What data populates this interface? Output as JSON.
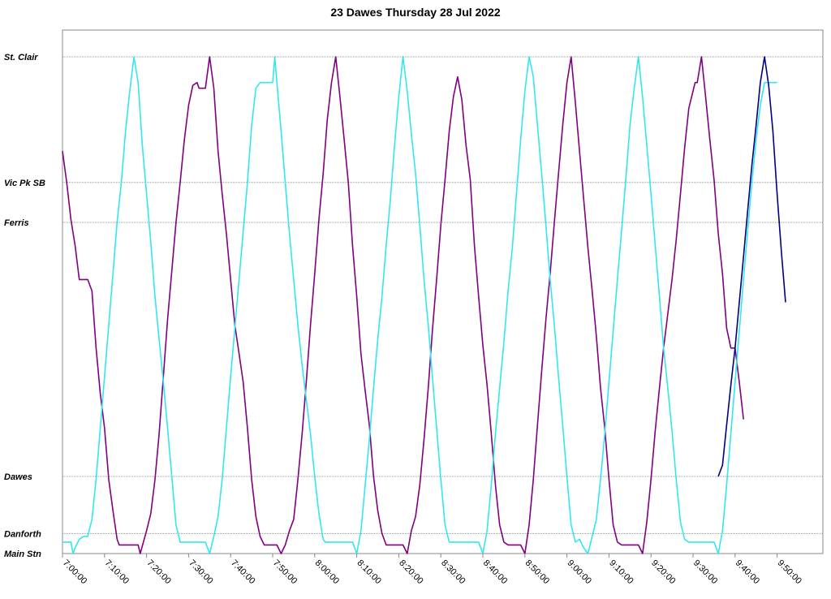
{
  "chart_data": {
    "type": "line",
    "title": "23 Dawes Thursday 28 Jul 2022",
    "xlabel": "",
    "ylabel": "",
    "grid": "horizontal dotted lines at each stop",
    "legend": "none",
    "x_range_minutes": [
      0,
      180
    ],
    "stops": [
      "Main Stn",
      "Danforth",
      "Dawes",
      "Ferris",
      "Vic Pk SB",
      "St. Clair"
    ],
    "stop_positions": {
      "Main Stn": 0,
      "Danforth": 7,
      "Dawes": 27,
      "Ferris": 116,
      "Vic Pk SB": 130,
      "St. Clair": 174
    },
    "y_range": [
      0,
      184
    ],
    "x_tick_labels": [
      "7:00:00",
      "7:10:00",
      "7:20:00",
      "7:30:00",
      "7:40:00",
      "7:50:00",
      "8:00:00",
      "8:10:00",
      "8:20:00",
      "8:30:00",
      "8:40:00",
      "8:50:00",
      "9:00:00",
      "9:10:00",
      "9:20:00",
      "9:30:00",
      "9:40:00",
      "9:50:00"
    ],
    "x_tick_minutes": [
      0,
      10,
      20,
      30,
      40,
      50,
      60,
      70,
      80,
      90,
      100,
      110,
      120,
      130,
      140,
      150,
      160,
      170
    ],
    "series": [
      {
        "color": "#800080",
        "points": [
          [
            0,
            141
          ],
          [
            1,
            130
          ],
          [
            2,
            117
          ],
          [
            3,
            108
          ],
          [
            4,
            96
          ],
          [
            6,
            96
          ],
          [
            7,
            92
          ],
          [
            8,
            72
          ],
          [
            9,
            56
          ],
          [
            10,
            44
          ],
          [
            11,
            26
          ],
          [
            12,
            15
          ],
          [
            13,
            5
          ],
          [
            13.5,
            3
          ],
          [
            18,
            3
          ],
          [
            18.5,
            0
          ],
          [
            20,
            8
          ],
          [
            21,
            14
          ],
          [
            22,
            26
          ],
          [
            23,
            42
          ],
          [
            24,
            62
          ],
          [
            25,
            82
          ],
          [
            26,
            99
          ],
          [
            27,
            116
          ],
          [
            28,
            130
          ],
          [
            29,
            145
          ],
          [
            30,
            157
          ],
          [
            31,
            164
          ],
          [
            32,
            165
          ],
          [
            32.5,
            163
          ],
          [
            33,
            163
          ],
          [
            34,
            163
          ],
          [
            35,
            174
          ],
          [
            36,
            163
          ],
          [
            37,
            141
          ],
          [
            38,
            126
          ],
          [
            39,
            112
          ],
          [
            40,
            96
          ],
          [
            41,
            80
          ],
          [
            42,
            70
          ],
          [
            43,
            60
          ],
          [
            44,
            44
          ],
          [
            45,
            26
          ],
          [
            46,
            13
          ],
          [
            47,
            6
          ],
          [
            48,
            3
          ],
          [
            51,
            3
          ],
          [
            52,
            0
          ],
          [
            53,
            3
          ],
          [
            54,
            8
          ],
          [
            55,
            12
          ],
          [
            56,
            26
          ],
          [
            57,
            42
          ],
          [
            58,
            60
          ],
          [
            59,
            80
          ],
          [
            60,
            98
          ],
          [
            61,
            117
          ],
          [
            62,
            133
          ],
          [
            63,
            152
          ],
          [
            64,
            165
          ],
          [
            65,
            174
          ],
          [
            66,
            160
          ],
          [
            67,
            145
          ],
          [
            68,
            130
          ],
          [
            69,
            108
          ],
          [
            70,
            90
          ],
          [
            71,
            70
          ],
          [
            72,
            57
          ],
          [
            73,
            45
          ],
          [
            74,
            27
          ],
          [
            75,
            15
          ],
          [
            76,
            7
          ],
          [
            77,
            3
          ],
          [
            81,
            3
          ],
          [
            82,
            0
          ],
          [
            83,
            8
          ],
          [
            84,
            13
          ],
          [
            85,
            24
          ],
          [
            86,
            40
          ],
          [
            87,
            58
          ],
          [
            88,
            78
          ],
          [
            89,
            96
          ],
          [
            90,
            115
          ],
          [
            91,
            131
          ],
          [
            92,
            148
          ],
          [
            93,
            160
          ],
          [
            94,
            167
          ],
          [
            95,
            159
          ],
          [
            96,
            143
          ],
          [
            97,
            131
          ],
          [
            98,
            108
          ],
          [
            99,
            90
          ],
          [
            100,
            73
          ],
          [
            101,
            59
          ],
          [
            102,
            42
          ],
          [
            103,
            24
          ],
          [
            104,
            10
          ],
          [
            105,
            4
          ],
          [
            106,
            3
          ],
          [
            109,
            3
          ],
          [
            110,
            0
          ],
          [
            111,
            10
          ],
          [
            112,
            26
          ],
          [
            113,
            45
          ],
          [
            114,
            64
          ],
          [
            115,
            82
          ],
          [
            116,
            98
          ],
          [
            117,
            116
          ],
          [
            118,
            133
          ],
          [
            119,
            150
          ],
          [
            120,
            165
          ],
          [
            121,
            174
          ],
          [
            122,
            158
          ],
          [
            123,
            141
          ],
          [
            124,
            124
          ],
          [
            125,
            107
          ],
          [
            126,
            92
          ],
          [
            127,
            76
          ],
          [
            128,
            58
          ],
          [
            129,
            44
          ],
          [
            130,
            26
          ],
          [
            131,
            10
          ],
          [
            132,
            4
          ],
          [
            133,
            3
          ],
          [
            137,
            3
          ],
          [
            138,
            0
          ],
          [
            139,
            11
          ],
          [
            140,
            26
          ],
          [
            141,
            43
          ],
          [
            142,
            58
          ],
          [
            143,
            72
          ],
          [
            144,
            84
          ],
          [
            145,
            96
          ],
          [
            146,
            110
          ],
          [
            147,
            126
          ],
          [
            148,
            142
          ],
          [
            149,
            156
          ],
          [
            150,
            162
          ],
          [
            150.5,
            165
          ],
          [
            151,
            165
          ],
          [
            152,
            174
          ],
          [
            153,
            160
          ],
          [
            154,
            145
          ],
          [
            155,
            131
          ],
          [
            156,
            112
          ],
          [
            157,
            98
          ],
          [
            158,
            79
          ],
          [
            159,
            72
          ],
          [
            160,
            72
          ],
          [
            161,
            60
          ],
          [
            162,
            47
          ]
        ]
      },
      {
        "color": "#33e6f0",
        "points": [
          [
            0,
            4
          ],
          [
            2,
            4
          ],
          [
            2.5,
            0
          ],
          [
            3,
            2
          ],
          [
            4,
            5
          ],
          [
            5,
            6
          ],
          [
            6,
            6
          ],
          [
            7,
            12
          ],
          [
            8,
            26
          ],
          [
            9,
            44
          ],
          [
            10,
            62
          ],
          [
            11,
            80
          ],
          [
            12,
            98
          ],
          [
            13,
            116
          ],
          [
            14,
            130
          ],
          [
            15,
            148
          ],
          [
            16,
            162
          ],
          [
            17,
            174
          ],
          [
            18,
            165
          ],
          [
            19,
            143
          ],
          [
            20,
            126
          ],
          [
            21,
            109
          ],
          [
            22,
            90
          ],
          [
            23,
            75
          ],
          [
            24,
            60
          ],
          [
            25,
            44
          ],
          [
            26,
            27
          ],
          [
            27,
            10
          ],
          [
            28,
            4
          ],
          [
            34,
            4
          ],
          [
            35,
            0
          ],
          [
            36,
            6
          ],
          [
            37,
            13
          ],
          [
            38,
            26
          ],
          [
            39,
            44
          ],
          [
            40,
            62
          ],
          [
            41,
            79
          ],
          [
            42,
            96
          ],
          [
            43,
            113
          ],
          [
            44,
            130
          ],
          [
            45,
            150
          ],
          [
            46,
            163
          ],
          [
            47,
            165
          ],
          [
            50,
            165
          ],
          [
            50.5,
            174
          ],
          [
            51,
            165
          ],
          [
            52,
            148
          ],
          [
            53,
            130
          ],
          [
            54,
            112
          ],
          [
            55,
            96
          ],
          [
            56,
            80
          ],
          [
            57,
            66
          ],
          [
            58,
            54
          ],
          [
            59,
            42
          ],
          [
            60,
            27
          ],
          [
            61,
            14
          ],
          [
            62,
            5
          ],
          [
            62.5,
            4
          ],
          [
            69,
            4
          ],
          [
            70,
            0
          ],
          [
            71,
            8
          ],
          [
            72,
            24
          ],
          [
            73,
            40
          ],
          [
            74,
            58
          ],
          [
            75,
            75
          ],
          [
            76,
            90
          ],
          [
            77,
            108
          ],
          [
            78,
            124
          ],
          [
            79,
            143
          ],
          [
            80,
            160
          ],
          [
            81,
            174
          ],
          [
            82,
            162
          ],
          [
            83,
            147
          ],
          [
            84,
            133
          ],
          [
            85,
            115
          ],
          [
            86,
            96
          ],
          [
            87,
            80
          ],
          [
            88,
            62
          ],
          [
            89,
            44
          ],
          [
            90,
            26
          ],
          [
            91,
            10
          ],
          [
            92,
            4
          ],
          [
            99,
            4
          ],
          [
            100,
            0
          ],
          [
            101,
            8
          ],
          [
            102,
            24
          ],
          [
            103,
            42
          ],
          [
            104,
            58
          ],
          [
            105,
            74
          ],
          [
            106,
            92
          ],
          [
            107,
            107
          ],
          [
            108,
            126
          ],
          [
            109,
            145
          ],
          [
            110,
            162
          ],
          [
            111,
            174
          ],
          [
            112,
            167
          ],
          [
            113,
            150
          ],
          [
            114,
            133
          ],
          [
            115,
            115
          ],
          [
            116,
            96
          ],
          [
            117,
            80
          ],
          [
            118,
            62
          ],
          [
            119,
            45
          ],
          [
            120,
            27
          ],
          [
            121,
            10
          ],
          [
            122,
            4
          ],
          [
            123,
            5
          ],
          [
            124,
            2
          ],
          [
            125,
            0
          ],
          [
            126,
            6
          ],
          [
            127,
            12
          ],
          [
            128,
            26
          ],
          [
            129,
            42
          ],
          [
            130,
            60
          ],
          [
            131,
            78
          ],
          [
            132,
            96
          ],
          [
            133,
            113
          ],
          [
            134,
            131
          ],
          [
            135,
            150
          ],
          [
            136,
            163
          ],
          [
            137,
            174
          ],
          [
            138,
            160
          ],
          [
            139,
            143
          ],
          [
            140,
            126
          ],
          [
            141,
            108
          ],
          [
            142,
            90
          ],
          [
            143,
            72
          ],
          [
            144,
            58
          ],
          [
            145,
            43
          ],
          [
            146,
            26
          ],
          [
            147,
            11
          ],
          [
            148,
            5
          ],
          [
            149,
            4
          ],
          [
            155,
            4
          ],
          [
            156,
            0
          ],
          [
            157,
            8
          ],
          [
            158,
            24
          ],
          [
            159,
            42
          ],
          [
            160,
            60
          ],
          [
            161,
            78
          ],
          [
            162,
            96
          ],
          [
            163,
            113
          ],
          [
            164,
            130
          ],
          [
            165,
            145
          ],
          [
            166,
            157
          ],
          [
            167,
            165
          ],
          [
            170,
            165
          ]
        ]
      },
      {
        "color": "#000080",
        "points": [
          [
            156,
            27
          ],
          [
            157,
            31
          ],
          [
            158,
            45
          ],
          [
            159,
            59
          ],
          [
            160,
            72
          ],
          [
            161,
            88
          ],
          [
            162,
            104
          ],
          [
            163,
            120
          ],
          [
            164,
            136
          ],
          [
            165,
            150
          ],
          [
            166,
            165
          ],
          [
            167,
            174
          ],
          [
            168,
            164
          ],
          [
            169,
            148
          ],
          [
            170,
            126
          ],
          [
            171,
            106
          ],
          [
            172,
            88
          ]
        ]
      }
    ]
  }
}
